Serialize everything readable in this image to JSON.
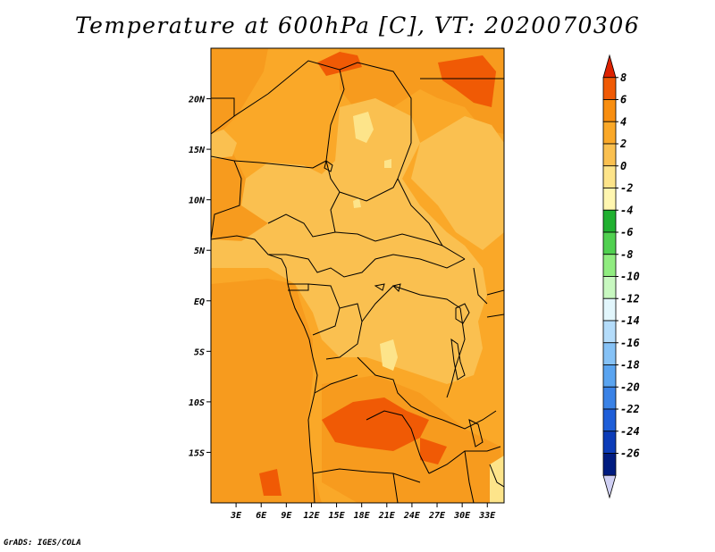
{
  "title": "Temperature at 600hPa [C], VT: 2020070306",
  "credit": "GrADS: IGES/COLA",
  "map": {
    "lat_ticks": [
      "20N",
      "15N",
      "10N",
      "5N",
      "EQ",
      "5S",
      "10S",
      "15S"
    ],
    "lat_values": [
      20,
      15,
      10,
      5,
      0,
      -5,
      -10,
      -15
    ],
    "lon_ticks": [
      "3E",
      "6E",
      "9E",
      "12E",
      "15E",
      "18E",
      "21E",
      "24E",
      "27E",
      "30E",
      "33E"
    ],
    "lon_values": [
      3,
      6,
      9,
      12,
      15,
      18,
      21,
      24,
      27,
      30,
      33
    ],
    "extent": {
      "lon": [
        0,
        35
      ],
      "lat": [
        -20,
        25
      ]
    }
  },
  "colorbar": {
    "labels": [
      "8",
      "6",
      "4",
      "2",
      "0",
      "-2",
      "-4",
      "-6",
      "-8",
      "-10",
      "-12",
      "-14",
      "-16",
      "-18",
      "-20",
      "-22",
      "-24",
      "-26"
    ],
    "colors": [
      "#dd2200",
      "#f05a05",
      "#f88e10",
      "#faa828",
      "#fac050",
      "#fde48a",
      "#fff6b0",
      "#20b030",
      "#50d050",
      "#90ec80",
      "#c8f8c0",
      "#e2f6fc",
      "#b4dcfa",
      "#86c2f6",
      "#5aa4f0",
      "#3a82e6",
      "#1e5ed8",
      "#0c3cb8",
      "#001c80",
      "#d0d0f4"
    ]
  }
}
